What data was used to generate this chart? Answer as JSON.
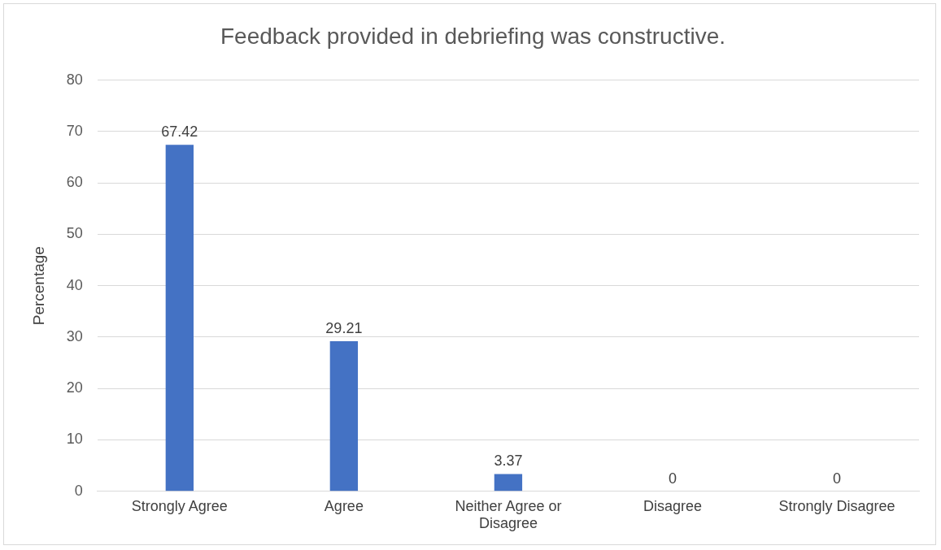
{
  "chart_data": {
    "type": "bar",
    "title": "Feedback provided in debriefing was constructive.",
    "ylabel": "Percentage",
    "categories": [
      "Strongly Agree",
      "Agree",
      "Neither Agree or Disagree",
      "Disagree",
      "Strongly Disagree"
    ],
    "values": [
      67.42,
      29.21,
      3.37,
      0,
      0
    ],
    "color": "#4472c4",
    "ylim": [
      0,
      80
    ],
    "yticks": [
      0,
      10,
      20,
      30,
      40,
      50,
      60,
      70,
      80
    ],
    "grid": "y",
    "data_labels": true,
    "legend": false
  }
}
